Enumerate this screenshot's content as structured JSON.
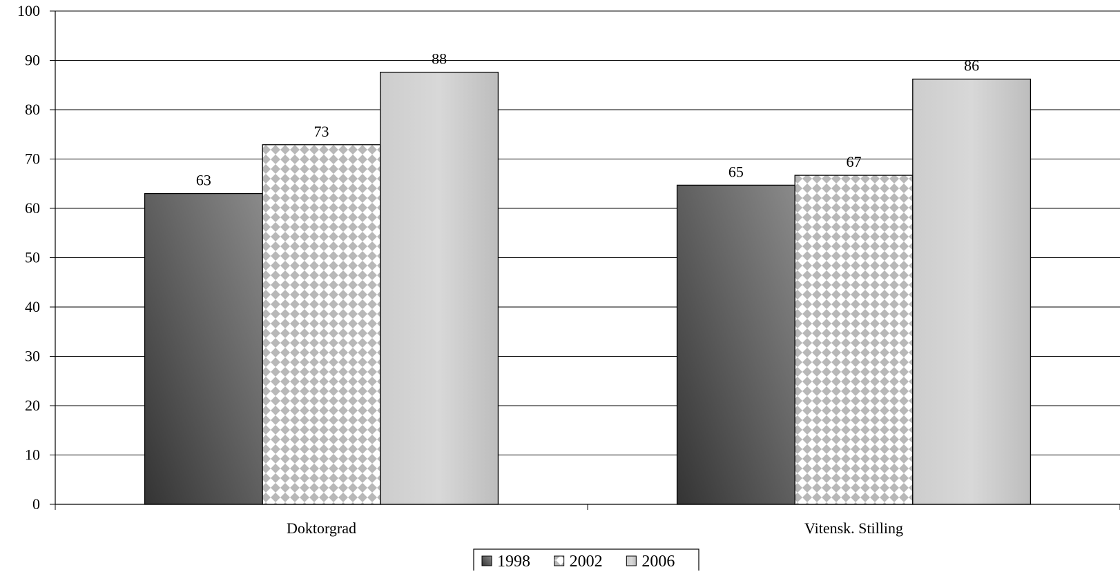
{
  "chart_data": {
    "type": "bar",
    "categories": [
      "Doktorgrad",
      "Vitensk. Stilling"
    ],
    "series": [
      {
        "name": "1998",
        "values": [
          63,
          64.7
        ],
        "data_labels": [
          "63",
          "65"
        ]
      },
      {
        "name": "2002",
        "values": [
          72.9,
          66.7
        ],
        "data_labels": [
          "73",
          "67"
        ]
      },
      {
        "name": "2006",
        "values": [
          87.6,
          86.2
        ],
        "data_labels": [
          "88",
          "86"
        ]
      }
    ],
    "title": "",
    "xlabel": "",
    "ylabel": "",
    "ylim": [
      0,
      100
    ],
    "yticks": [
      "0",
      "10",
      "20",
      "30",
      "40",
      "50",
      "60",
      "70",
      "80",
      "90",
      "100"
    ],
    "grid": true,
    "legend_position": "bottom"
  },
  "colors": {
    "series_1998": "#666666",
    "series_2002": "#c0c0c0",
    "series_2006": "#c8c8c8"
  }
}
